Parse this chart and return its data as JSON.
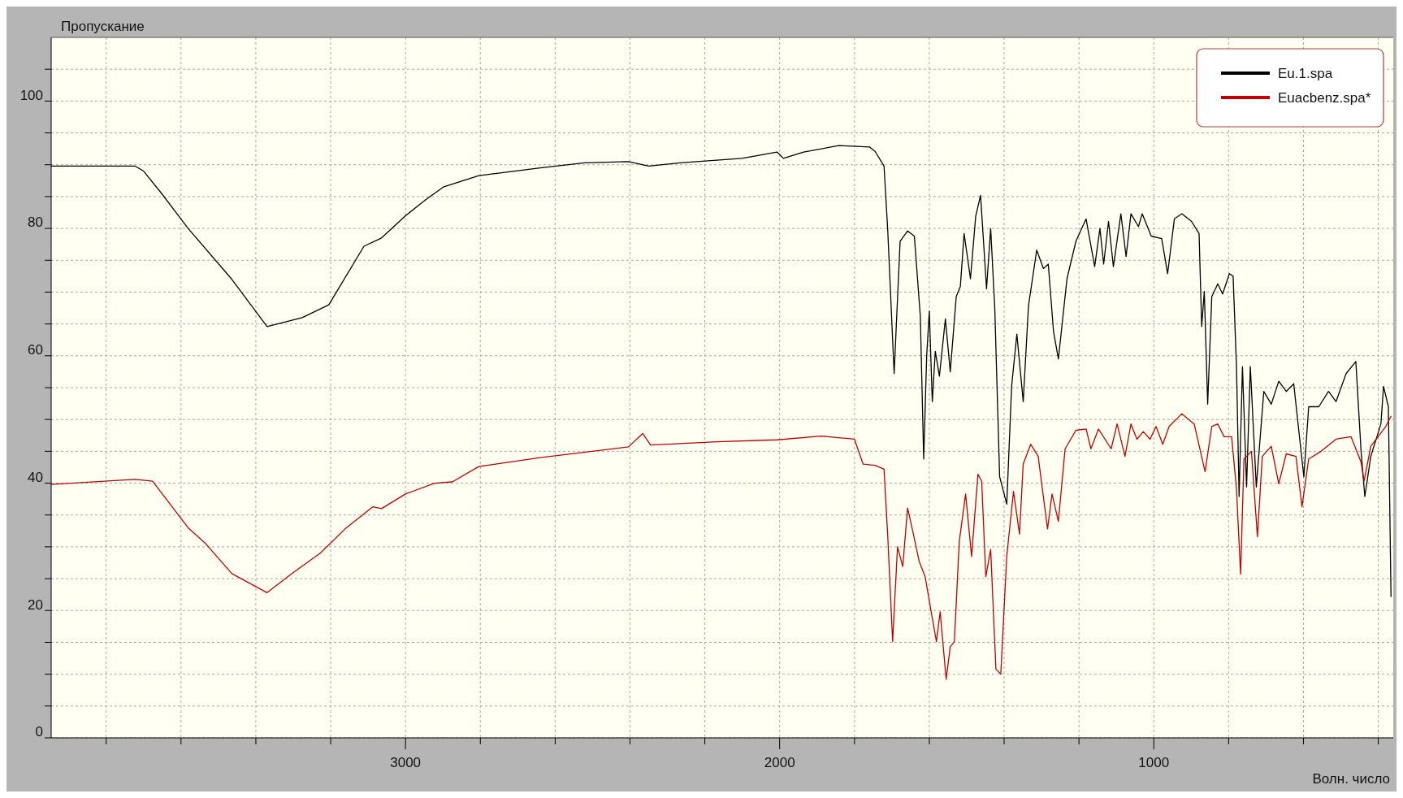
{
  "chart_data": {
    "type": "line",
    "ylabel": "Пропускание",
    "xlabel": "Волн. число",
    "xlim": [
      3947,
      360
    ],
    "xticks": [
      {
        "value": 3800,
        "label": null
      },
      {
        "value": 3600,
        "label": null
      },
      {
        "value": 3400,
        "label": null
      },
      {
        "value": 3200,
        "label": null
      },
      3000,
      {
        "value": 2800,
        "label": null
      },
      {
        "value": 2600,
        "label": null
      },
      {
        "value": 2400,
        "label": null
      },
      {
        "value": 2200,
        "label": null
      },
      2000,
      {
        "value": 1800,
        "label": null
      },
      {
        "value": 1600,
        "label": null
      },
      {
        "value": 1400,
        "label": null
      },
      {
        "value": 1200,
        "label": null
      },
      1000,
      {
        "value": 800,
        "label": null
      },
      {
        "value": 600,
        "label": null
      },
      {
        "value": 400,
        "label": null
      }
    ],
    "ylim": [
      0,
      110
    ],
    "yticks": [
      0,
      {
        "value": 5,
        "label": null
      },
      {
        "value": 10,
        "label": null
      },
      {
        "value": 15,
        "label": null
      },
      20,
      {
        "value": 25,
        "label": null
      },
      {
        "value": 30,
        "label": null
      },
      {
        "value": 35,
        "label": null
      },
      40,
      {
        "value": 45,
        "label": null
      },
      {
        "value": 50,
        "label": null
      },
      {
        "value": 55,
        "label": null
      },
      60,
      {
        "value": 65,
        "label": null
      },
      {
        "value": 70,
        "label": null
      },
      {
        "value": 75,
        "label": null
      },
      80,
      {
        "value": 85,
        "label": null
      },
      {
        "value": 90,
        "label": null
      },
      {
        "value": 95,
        "label": null
      },
      100,
      {
        "value": 105,
        "label": null
      }
    ],
    "grid": true,
    "legend": "top right",
    "marker": "none",
    "line_style": "solid",
    "series": [
      {
        "name": "Eu.1.spa",
        "color": "#000000",
        "x": [
          3947,
          3723,
          3700,
          3652,
          3581,
          3464,
          3370,
          3276,
          3205,
          3111,
          3064,
          3000,
          2946,
          2899,
          2804,
          2640,
          2522,
          2404,
          2350,
          2266,
          2101,
          2007,
          1990,
          1936,
          1842,
          1760,
          1745,
          1721,
          1711,
          1694,
          1678,
          1658,
          1640,
          1624,
          1615,
          1607,
          1600,
          1592,
          1584,
          1573,
          1557,
          1544,
          1528,
          1517,
          1507,
          1490,
          1476,
          1463,
          1447,
          1436,
          1425,
          1412,
          1393,
          1380,
          1366,
          1349,
          1335,
          1313,
          1295,
          1282,
          1268,
          1255,
          1232,
          1208,
          1181,
          1158,
          1144,
          1134,
          1121,
          1108,
          1088,
          1074,
          1061,
          1041,
          1031,
          1007,
          979,
          963,
          945,
          925,
          899,
          879,
          872,
          865,
          856,
          845,
          829,
          816,
          798,
          788,
          779,
          772,
          763,
          752,
          742,
          726,
          706,
          686,
          666,
          646,
          626,
          599,
          586,
          559,
          533,
          513,
          486,
          460,
          446,
          436,
          420,
          393,
          386,
          373,
          366
        ],
        "values": [
          89.8,
          89.8,
          89,
          85.5,
          80,
          72,
          64.6,
          66,
          68,
          77.2,
          78.5,
          82,
          84.5,
          86.5,
          88.3,
          89.5,
          90.3,
          90.5,
          89.8,
          90.3,
          91,
          92,
          91,
          92,
          93,
          92.8,
          92.1,
          89.8,
          79.6,
          57.2,
          78,
          79.6,
          78.8,
          66.2,
          43.8,
          60,
          67,
          52.8,
          60.7,
          56.8,
          65.8,
          57.5,
          69.3,
          70.9,
          79.2,
          72.1,
          81.9,
          85.2,
          70.5,
          80,
          67.4,
          41,
          36.7,
          55.2,
          63.4,
          52.8,
          67.8,
          76.6,
          73.7,
          74.4,
          63.8,
          59.5,
          72.1,
          78,
          81.5,
          74,
          80,
          74.4,
          81.1,
          74,
          82.3,
          75.6,
          82.3,
          80.3,
          82.3,
          78.8,
          78.4,
          72.9,
          81.5,
          82.3,
          81.1,
          79.2,
          64.6,
          70.1,
          52.4,
          69.3,
          71.3,
          69.7,
          72.9,
          72.5,
          58.3,
          37.9,
          58.3,
          39.4,
          58.3,
          39.4,
          54.4,
          52.4,
          56,
          54.4,
          55.6,
          41,
          52,
          52,
          54.4,
          52.8,
          57.2,
          59.1,
          45,
          37.9,
          44.2,
          49.3,
          55.2,
          52,
          22.2
        ]
      },
      {
        "name": "Euacbenz.spa*",
        "color": "#c00000",
        "x": [
          3947,
          3723,
          3676,
          3581,
          3534,
          3464,
          3370,
          3299,
          3228,
          3158,
          3087,
          3064,
          3000,
          2922,
          2875,
          2804,
          2640,
          2404,
          2366,
          2345,
          2168,
          2007,
          1889,
          1800,
          1777,
          1745,
          1721,
          1711,
          1698,
          1685,
          1671,
          1658,
          1644,
          1627,
          1611,
          1595,
          1581,
          1571,
          1555,
          1544,
          1533,
          1520,
          1503,
          1487,
          1470,
          1460,
          1449,
          1436,
          1422,
          1409,
          1393,
          1375,
          1359,
          1349,
          1329,
          1309,
          1284,
          1272,
          1255,
          1237,
          1208,
          1181,
          1168,
          1148,
          1114,
          1098,
          1077,
          1061,
          1045,
          1028,
          1010,
          994,
          976,
          959,
          925,
          892,
          863,
          845,
          829,
          812,
          792,
          779,
          768,
          759,
          739,
          723,
          710,
          686,
          666,
          646,
          620,
          604,
          586,
          553,
          513,
          473,
          446,
          438,
          420,
          380,
          366
        ],
        "values": [
          39.8,
          40.6,
          40.3,
          33,
          30.5,
          25.8,
          22.8,
          26,
          29,
          33,
          36.3,
          36,
          38.3,
          40,
          40.2,
          42.6,
          44,
          45.7,
          47.8,
          46,
          46.5,
          46.8,
          47.4,
          46.9,
          43,
          42.8,
          42.2,
          31.6,
          15.1,
          30,
          26.9,
          36.1,
          32.4,
          27.7,
          25.3,
          19.8,
          15.1,
          19.8,
          9.2,
          14.3,
          15.1,
          30.8,
          38.3,
          28.5,
          41.4,
          40.3,
          25.3,
          29.6,
          10.8,
          10,
          28.5,
          38.7,
          32,
          43,
          46.1,
          44.2,
          32.8,
          38.3,
          34,
          45.4,
          48.3,
          48.5,
          45.4,
          48.5,
          45.4,
          49.3,
          44.2,
          49.3,
          46.9,
          48.1,
          46.9,
          48.9,
          46.1,
          48.9,
          50.9,
          49.3,
          41.8,
          48.9,
          49.3,
          47.3,
          47.3,
          39.1,
          25.7,
          43.8,
          45,
          31.6,
          44.2,
          45.8,
          39.9,
          44.6,
          44.2,
          36.3,
          43.8,
          45,
          46.9,
          47.3,
          43.3,
          40.3,
          45.8,
          48.9,
          50.5
        ]
      }
    ]
  }
}
